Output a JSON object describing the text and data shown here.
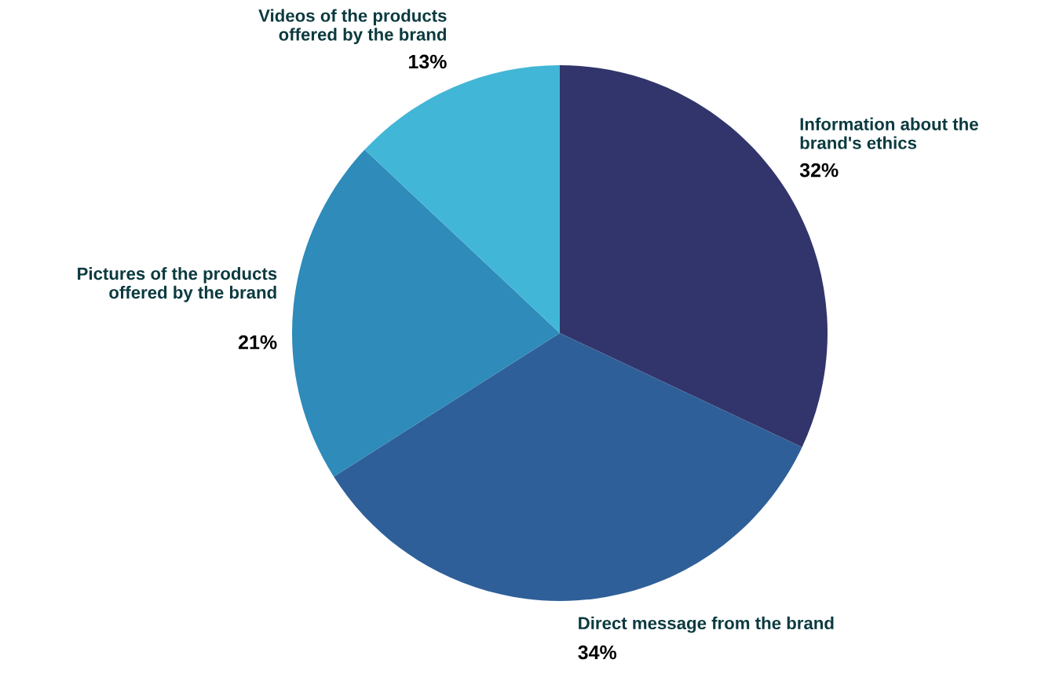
{
  "chart_data": {
    "type": "pie",
    "categories": [
      "Information about the\nbrand's ethics",
      "Direct message from the brand",
      "Pictures of the products\noffered by the brand",
      "Videos of the products\noffered by the brand"
    ],
    "values": [
      32,
      34,
      21,
      13
    ],
    "value_labels": [
      "32%",
      "34%",
      "21%",
      "13%"
    ],
    "colors": [
      "#32356b",
      "#2f5f98",
      "#2e8bba",
      "#42b6d6"
    ],
    "legend": false
  }
}
